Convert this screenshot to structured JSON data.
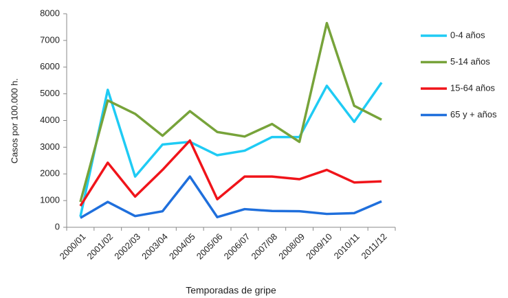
{
  "chart_data": {
    "type": "line",
    "x_label": "Temporadas de gripe",
    "y_label": "Casos por 100.000 h.",
    "categories": [
      "2000/01",
      "2001/02",
      "2002/03",
      "2003/04",
      "2004/05",
      "2005/06",
      "2006/07",
      "2007/08",
      "2008/09",
      "2009/10",
      "2010/11",
      "2011/12"
    ],
    "series": [
      {
        "name": "0-4 años",
        "color": "#1fcbf4",
        "values": [
          400,
          5150,
          1900,
          3100,
          3200,
          2700,
          2870,
          3380,
          3380,
          5300,
          3950,
          5420
        ]
      },
      {
        "name": "5-14 años",
        "color": "#77a33a",
        "values": [
          950,
          4750,
          4250,
          3430,
          4350,
          3570,
          3400,
          3870,
          3200,
          7650,
          4550,
          4030
        ]
      },
      {
        "name": "15-64 años",
        "color": "#f0141a",
        "values": [
          800,
          2420,
          1150,
          2150,
          3250,
          1050,
          1900,
          1900,
          1800,
          2150,
          1680,
          1720
        ]
      },
      {
        "name": "65 y + años",
        "color": "#1f6fdc",
        "values": [
          350,
          950,
          420,
          600,
          1900,
          380,
          680,
          610,
          600,
          500,
          530,
          970
        ]
      }
    ],
    "ylim": [
      0,
      8000
    ],
    "yticks": [
      0,
      1000,
      2000,
      3000,
      4000,
      5000,
      6000,
      7000,
      8000
    ],
    "grid": false,
    "legend": "right"
  }
}
